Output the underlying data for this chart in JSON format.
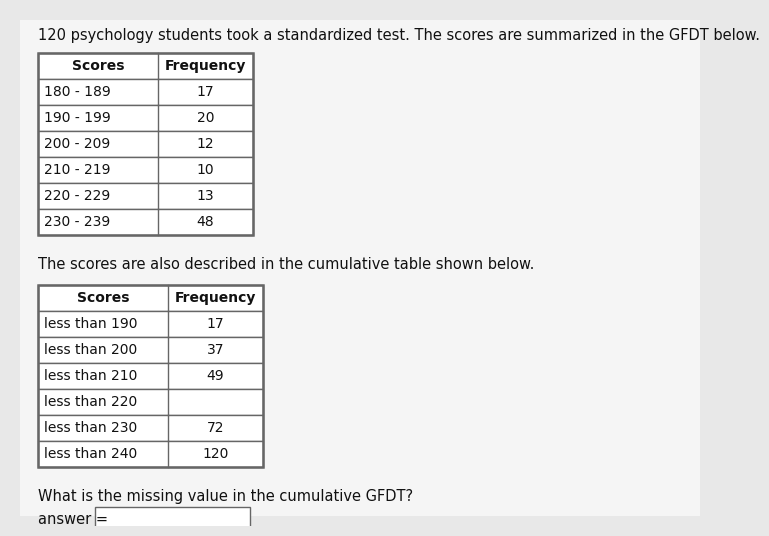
{
  "background_color": "#e8e8e8",
  "title_text": "120 psychology students took a standardized test. The scores are summarized in the GFDT below.",
  "title_fontsize": 10.5,
  "table1_headers": [
    "Scores",
    "Frequency"
  ],
  "table1_rows": [
    [
      "180 - 189",
      "17"
    ],
    [
      "190 - 199",
      "20"
    ],
    [
      "200 - 209",
      "12"
    ],
    [
      "210 - 219",
      "10"
    ],
    [
      "220 - 229",
      "13"
    ],
    [
      "230 - 239",
      "48"
    ]
  ],
  "middle_text": "The scores are also described in the cumulative table shown below.",
  "middle_text_fontsize": 10.5,
  "table2_headers": [
    "Scores",
    "Frequency"
  ],
  "table2_rows": [
    [
      "less than 190",
      "17"
    ],
    [
      "less than 200",
      "37"
    ],
    [
      "less than 210",
      "49"
    ],
    [
      "less than 220",
      ""
    ],
    [
      "less than 230",
      "72"
    ],
    [
      "less than 240",
      "120"
    ]
  ],
  "question_text": "What is the missing value in the cumulative GFDT?",
  "question_fontsize": 10.5,
  "answer_label": "answer =",
  "answer_fontsize": 10.5,
  "text_color": "#111111",
  "table_border_color": "#666666",
  "table_fill_color": "#ffffff",
  "answer_box_color": "#ffffff",
  "content_bg": "#f5f5f5"
}
